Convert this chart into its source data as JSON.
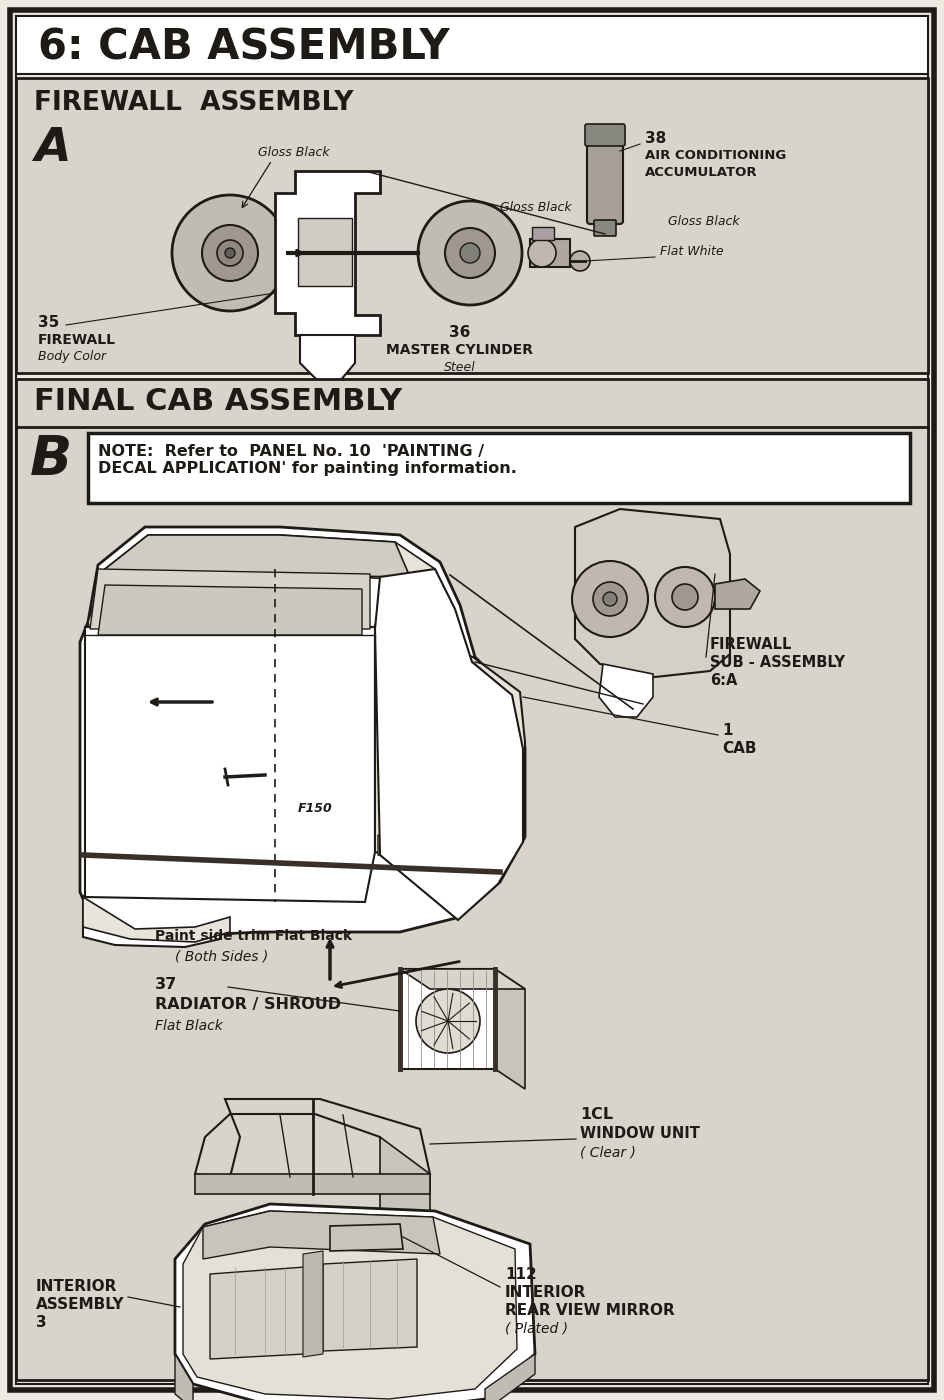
{
  "page_bg": "#ede9e3",
  "section_bg": "#d8d4cc",
  "outer_border_color": "#2a2520",
  "title": "6: CAB ASSEMBLY",
  "section_a_title": "FIREWALL  ASSEMBLY",
  "section_a_label": "A",
  "section_b_title": "FINAL CAB ASSEMBLY",
  "section_b_label": "B",
  "note_text": "NOTE:  Refer to  PANEL No. 10  'PAINTING /\nDECAL APPLICATION' for painting information.",
  "text_color": "#1e1a16",
  "line_color": "#1e1a16",
  "dark_line": "#2a2520"
}
